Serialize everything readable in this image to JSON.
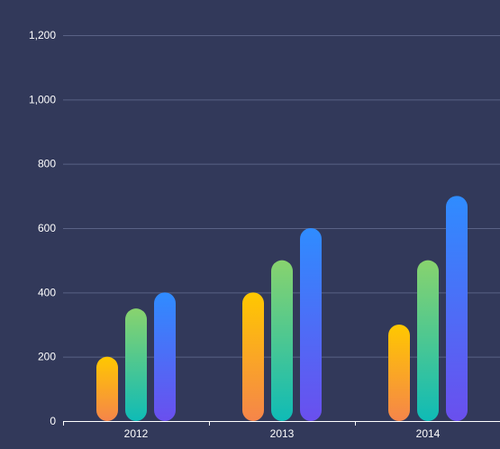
{
  "chart_data": {
    "type": "bar",
    "categories": [
      "2012",
      "2013",
      "2014"
    ],
    "series": [
      {
        "values": [
          200,
          400,
          300
        ]
      },
      {
        "values": [
          350,
          500,
          500
        ]
      },
      {
        "values": [
          400,
          600,
          700
        ]
      }
    ],
    "ylim": [
      0,
      1200
    ],
    "y_ticks": [
      "0",
      "200",
      "400",
      "600",
      "800",
      "1,000",
      "1,200"
    ],
    "grid": true,
    "legend": "none",
    "colors": {
      "background": "#32395a",
      "gridline": "#5a6285",
      "axis": "#ffffff",
      "series_gradients": [
        [
          "#ffc800",
          "#f5854a"
        ],
        [
          "#88d36e",
          "#0fbbb6"
        ],
        [
          "#2f8cff",
          "#6a4fee"
        ]
      ]
    }
  }
}
